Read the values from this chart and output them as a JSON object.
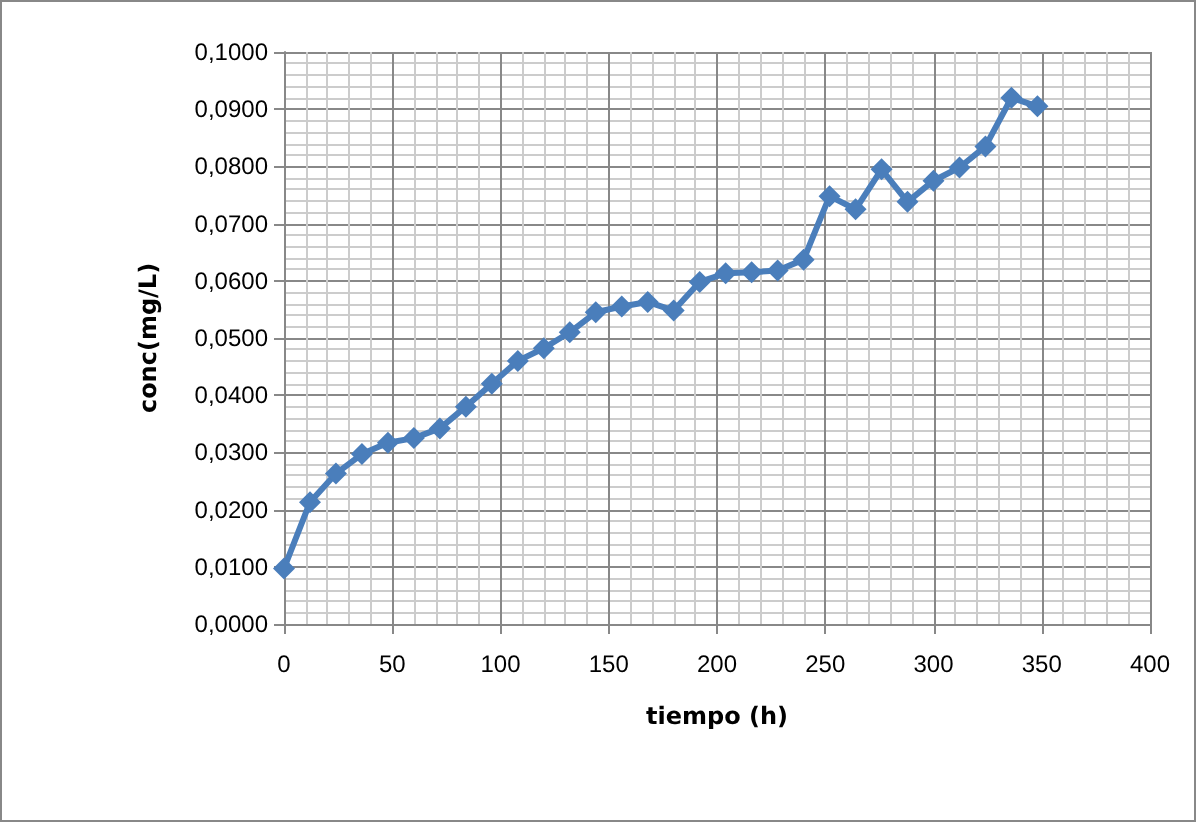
{
  "chart_data": {
    "type": "line",
    "xlabel": "tiempo (h)",
    "ylabel": "conc(mg/L)",
    "x": [
      0,
      12,
      24,
      36,
      48,
      60,
      72,
      84,
      96,
      108,
      120,
      132,
      144,
      156,
      168,
      180,
      192,
      204,
      216,
      228,
      240,
      252,
      264,
      276,
      288,
      300,
      312,
      324,
      336,
      348
    ],
    "series": [
      {
        "color": "#4a7ebb",
        "values": [
          0.0097,
          0.0213,
          0.0263,
          0.0297,
          0.0317,
          0.0325,
          0.0342,
          0.038,
          0.042,
          0.046,
          0.0482,
          0.051,
          0.0545,
          0.0555,
          0.0563,
          0.0548,
          0.0598,
          0.0613,
          0.0615,
          0.0618,
          0.0637,
          0.0748,
          0.0725,
          0.0795,
          0.0738,
          0.0775,
          0.0798,
          0.0835,
          0.092,
          0.0905
        ]
      }
    ],
    "xlim": [
      0,
      400
    ],
    "xticks": [
      0,
      50,
      100,
      150,
      200,
      250,
      300,
      350,
      400
    ],
    "ylim": [
      0,
      0.1
    ],
    "yticks": [
      {
        "value": 0,
        "label": "0,0000"
      },
      {
        "value": 0.01,
        "label": "0,0100"
      },
      {
        "value": 0.02,
        "label": "0,0200"
      },
      {
        "value": 0.03,
        "label": "0,0300"
      },
      {
        "value": 0.04,
        "label": "0,0400"
      },
      {
        "value": 0.05,
        "label": "0,0500"
      },
      {
        "value": 0.06,
        "label": "0,0600"
      },
      {
        "value": 0.07,
        "label": "0,0700"
      },
      {
        "value": 0.08,
        "label": "0,0800"
      },
      {
        "value": 0.09,
        "label": "0,0900"
      },
      {
        "value": 0.1,
        "label": "0,1000"
      }
    ],
    "grid": true,
    "marker": "diamond",
    "line_style": "solid"
  }
}
